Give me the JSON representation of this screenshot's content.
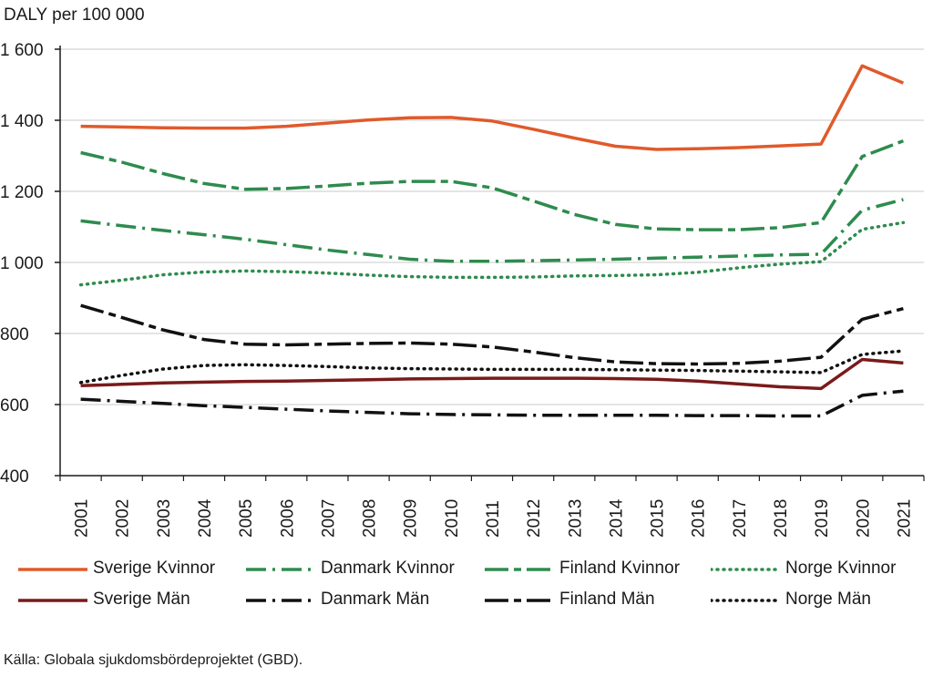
{
  "chart_data": {
    "type": "line",
    "ylabel": "DALY per 100 000",
    "ylim": [
      400,
      1600
    ],
    "yticks": [
      400,
      600,
      800,
      1000,
      1200,
      1400,
      1600
    ],
    "ytick_labels": [
      "400",
      "600",
      "800",
      "1 000",
      "1 200",
      "1 400",
      "1 600"
    ],
    "categories": [
      "2001",
      "2002",
      "2003",
      "2004",
      "2005",
      "2006",
      "2007",
      "2008",
      "2009",
      "2010",
      "2011",
      "2012",
      "2013",
      "2014",
      "2015",
      "2016",
      "2017",
      "2018",
      "2019",
      "2020",
      "2021"
    ],
    "series": [
      {
        "name": "Sverige Kvinnor",
        "color": "#e05a2b",
        "dash": "solid",
        "values": [
          1383,
          1381,
          1379,
          1378,
          1378,
          1383,
          1392,
          1401,
          1407,
          1408,
          1398,
          1375,
          1350,
          1327,
          1318,
          1320,
          1323,
          1328,
          1333,
          1553,
          1505
        ]
      },
      {
        "name": "Danmark Kvinnor",
        "color": "#2e8b4e",
        "dash": "dashdot",
        "values": [
          1117,
          1103,
          1090,
          1078,
          1065,
          1050,
          1035,
          1022,
          1009,
          1003,
          1003,
          1005,
          1007,
          1009,
          1012,
          1015,
          1018,
          1021,
          1023,
          1147,
          1177
        ]
      },
      {
        "name": "Finland Kvinnor",
        "color": "#2e8b4e",
        "dash": "longdashdot",
        "values": [
          1309,
          1282,
          1250,
          1222,
          1206,
          1208,
          1215,
          1223,
          1228,
          1228,
          1210,
          1173,
          1135,
          1107,
          1094,
          1092,
          1092,
          1098,
          1112,
          1298,
          1342
        ]
      },
      {
        "name": "Norge Kvinnor",
        "color": "#2e8b4e",
        "dash": "dotted",
        "values": [
          937,
          950,
          965,
          973,
          976,
          974,
          970,
          964,
          960,
          958,
          958,
          959,
          962,
          963,
          965,
          972,
          985,
          995,
          1002,
          1093,
          1112
        ]
      },
      {
        "name": "Sverige Män",
        "color": "#7a1a1a",
        "dash": "solid",
        "values": [
          653,
          657,
          661,
          663,
          665,
          666,
          668,
          670,
          672,
          673,
          674,
          674,
          674,
          673,
          671,
          666,
          658,
          650,
          645,
          727,
          717
        ]
      },
      {
        "name": "Danmark Män",
        "color": "#111111",
        "dash": "dashdot",
        "values": [
          615,
          609,
          603,
          597,
          592,
          587,
          582,
          578,
          574,
          572,
          571,
          570,
          570,
          570,
          570,
          569,
          569,
          568,
          568,
          626,
          638
        ]
      },
      {
        "name": "Finland Män",
        "color": "#111111",
        "dash": "longdashdot",
        "values": [
          879,
          845,
          810,
          783,
          770,
          768,
          770,
          772,
          773,
          770,
          762,
          748,
          732,
          720,
          715,
          714,
          716,
          722,
          733,
          840,
          870
        ]
      },
      {
        "name": "Norge Män",
        "color": "#111111",
        "dash": "dotted",
        "values": [
          662,
          682,
          700,
          710,
          712,
          710,
          707,
          703,
          701,
          700,
          699,
          699,
          699,
          698,
          697,
          696,
          694,
          692,
          690,
          741,
          751
        ]
      }
    ]
  },
  "source": "Källa: Globala sjukdomsbördeprojektet (GBD)."
}
